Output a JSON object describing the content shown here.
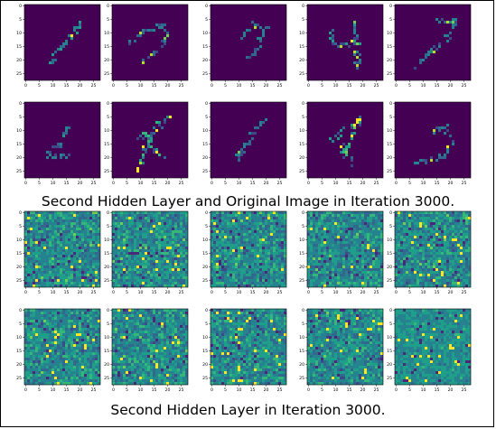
{
  "captions": {
    "top": "Second Hidden Layer and Original Image in Iteration 3000.",
    "bottom": "Second Hidden Layer in Iteration 3000."
  },
  "axis": {
    "grid_size": 28,
    "x_ticks": [
      "0",
      "5",
      "10",
      "15",
      "20",
      "25"
    ],
    "y_ticks": [
      "0",
      "5",
      "10",
      "15",
      "20",
      "25"
    ]
  },
  "colormap": {
    "name": "viridis",
    "dark": "#440154",
    "stops": [
      "#440154",
      "#482878",
      "#3e4989",
      "#31688e",
      "#26828e",
      "#1f9e89",
      "#35b779",
      "#6ece58",
      "#b5de2b",
      "#fde725"
    ]
  },
  "groups": [
    {
      "name": "second-hidden-layer-and-original-image",
      "caption_key": "top",
      "style": "sparse",
      "rows": 2,
      "cols": 5,
      "count": 10
    },
    {
      "name": "second-hidden-layer",
      "caption_key": "bottom",
      "style": "dense",
      "rows": 2,
      "cols": 5,
      "count": 10
    }
  ]
}
